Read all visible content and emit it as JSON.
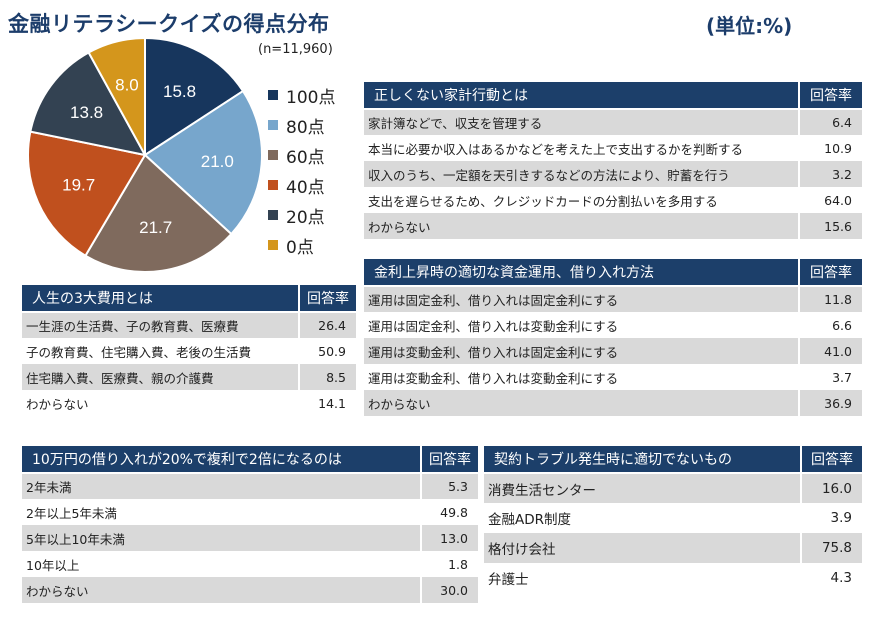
{
  "header": {
    "title": "金融リテラシークイズの得点分布",
    "unit": "(単位:%)",
    "n_label": "(n=11,960)"
  },
  "colors": {
    "header_bg": "#1c3f6a",
    "row_shade": "#d9d9d9"
  },
  "chart_data": {
    "type": "pie",
    "slices": [
      {
        "label": "100点",
        "value": 15.8,
        "color": "#17365d"
      },
      {
        "label": "80点",
        "value": 21.0,
        "color": "#77a6cc"
      },
      {
        "label": "60点",
        "value": 21.7,
        "color": "#7f6a5d"
      },
      {
        "label": "40点",
        "value": 19.7,
        "color": "#c0501e"
      },
      {
        "label": "20点",
        "value": 13.8,
        "color": "#334252"
      },
      {
        "label": "0点",
        "value": 8.0,
        "color": "#d4961c"
      }
    ],
    "legend_position": "right",
    "start": "12 o'clock",
    "direction": "clockwise"
  },
  "tables": {
    "household": {
      "title": "正しくない家計行動とは",
      "rate_header": "回答率",
      "rows": [
        {
          "label": "家計簿などで、収支を管理する",
          "rate": "6.4"
        },
        {
          "label": "本当に必要か収入はあるかなどを考えた上で支出するかを判断する",
          "rate": "10.9"
        },
        {
          "label": "収入のうち、一定額を天引きするなどの方法により、貯蓄を行う",
          "rate": "3.2"
        },
        {
          "label": "支出を遅らせるため、クレジッドカードの分割払いを多用する",
          "rate": "64.0"
        },
        {
          "label": "わからない",
          "rate": "15.6"
        }
      ]
    },
    "life_costs": {
      "title": "人生の3大費用とは",
      "rate_header": "回答率",
      "rows": [
        {
          "label": "一生涯の生活費、子の教育費、医療費",
          "rate": "26.4"
        },
        {
          "label": "子の教育費、住宅購入費、老後の生活費",
          "rate": "50.9"
        },
        {
          "label": "住宅購入費、医療費、親の介護費",
          "rate": "8.5"
        },
        {
          "label": "わからない",
          "rate": "14.1"
        }
      ]
    },
    "interest": {
      "title": "金利上昇時の適切な資金運用、借り入れ方法",
      "rate_header": "回答率",
      "rows": [
        {
          "label": "運用は固定金利、借り入れは固定金利にする",
          "rate": "11.8"
        },
        {
          "label": "運用は固定金利、借り入れは変動金利にする",
          "rate": "6.6"
        },
        {
          "label": "運用は変動金利、借り入れは固定金利にする",
          "rate": "41.0"
        },
        {
          "label": "運用は変動金利、借り入れは変動金利にする",
          "rate": "3.7"
        },
        {
          "label": "わからない",
          "rate": "36.9"
        }
      ]
    },
    "compound": {
      "title": "10万円の借り入れが20%で複利で2倍になるのは",
      "rate_header": "回答率",
      "rows": [
        {
          "label": "2年未満",
          "rate": "5.3"
        },
        {
          "label": "2年以上5年未満",
          "rate": "49.8"
        },
        {
          "label": "5年以上10年未満",
          "rate": "13.0"
        },
        {
          "label": "10年以上",
          "rate": "1.8"
        },
        {
          "label": "わからない",
          "rate": "30.0"
        }
      ]
    },
    "contract": {
      "title": "契約トラブル発生時に適切でないもの",
      "rate_header": "回答率",
      "rows": [
        {
          "label": "消費生活センター",
          "rate": "16.0"
        },
        {
          "label": "金融ADR制度",
          "rate": "3.9"
        },
        {
          "label": "格付け会社",
          "rate": "75.8"
        },
        {
          "label": "弁護士",
          "rate": "4.3"
        }
      ]
    }
  }
}
